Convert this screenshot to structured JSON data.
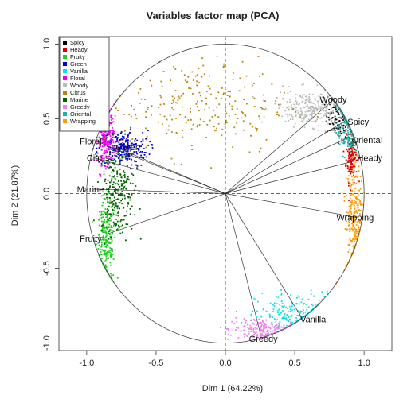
{
  "chart_data": {
    "type": "scatter",
    "title": "Variables factor map (PCA)",
    "xlabel": "Dim 1 (64.22%)",
    "ylabel": "Dim 2 (21.87%)",
    "xlim": [
      -1.2,
      1.2
    ],
    "ylim": [
      -1.05,
      1.05
    ],
    "x_ticks": [
      -1.0,
      -0.5,
      0.0,
      0.5,
      1.0
    ],
    "y_ticks": [
      -1.0,
      -0.5,
      0.0,
      0.5,
      1.0
    ],
    "x_tick_labels": [
      "-1.0",
      "-0.5",
      "0.0",
      "0.5",
      "1.0"
    ],
    "y_tick_labels": [
      "-1.0",
      "-0.5",
      "0.0",
      "0.5",
      "1.0"
    ],
    "grid": false,
    "reference_lines": {
      "x": 0,
      "y": 0,
      "style": "dashed"
    },
    "unit_circle": true,
    "legend_position": "top-left",
    "series": [
      {
        "name": "Spicy",
        "color": "#000000",
        "cluster": {
          "cx": 0.83,
          "cy": 0.52,
          "sx": 0.05,
          "sy": 0.07,
          "n": 140
        }
      },
      {
        "name": "Heady",
        "color": "#dd0000",
        "cluster": {
          "cx": 0.91,
          "cy": 0.26,
          "sx": 0.02,
          "sy": 0.09,
          "n": 150
        }
      },
      {
        "name": "Fruity",
        "color": "#22cc22",
        "cluster": {
          "cx": -0.86,
          "cy": -0.33,
          "sx": 0.035,
          "sy": 0.14,
          "n": 260
        }
      },
      {
        "name": "Green",
        "color": "#0000cc",
        "cluster": {
          "cx": -0.74,
          "cy": 0.3,
          "sx": 0.09,
          "sy": 0.06,
          "n": 240
        }
      },
      {
        "name": "Vanilla",
        "color": "#00e5ee",
        "cluster": {
          "cx": 0.5,
          "cy": -0.82,
          "sx": 0.14,
          "sy": 0.08,
          "n": 220
        }
      },
      {
        "name": "Floral",
        "color": "#ee00ee",
        "cluster": {
          "cx": -0.86,
          "cy": 0.38,
          "sx": 0.03,
          "sy": 0.09,
          "n": 230
        }
      },
      {
        "name": "Woody",
        "color": "#bbbbbb",
        "cluster": {
          "cx": 0.62,
          "cy": 0.57,
          "sx": 0.14,
          "sy": 0.06,
          "n": 280
        }
      },
      {
        "name": "Citrus",
        "color": "#b8860b",
        "cluster": {
          "cx": -0.2,
          "cy": 0.58,
          "sx": 0.33,
          "sy": 0.16,
          "n": 260
        }
      },
      {
        "name": "Marine",
        "color": "#006400",
        "cluster": {
          "cx": -0.78,
          "cy": 0.02,
          "sx": 0.06,
          "sy": 0.15,
          "n": 260
        }
      },
      {
        "name": "Greedy",
        "color": "#ee82ee",
        "cluster": {
          "cx": 0.26,
          "cy": -0.91,
          "sx": 0.12,
          "sy": 0.04,
          "n": 200
        }
      },
      {
        "name": "Oriental",
        "color": "#20b2aa",
        "cluster": {
          "cx": 0.88,
          "cy": 0.42,
          "sx": 0.04,
          "sy": 0.08,
          "n": 140
        }
      },
      {
        "name": "Wrapping",
        "color": "#ff9900",
        "cluster": {
          "cx": 0.93,
          "cy": -0.15,
          "sx": 0.03,
          "sy": 0.18,
          "n": 260
        }
      }
    ],
    "variable_arrows": [
      {
        "name": "Woody",
        "x": 0.77,
        "y": 0.62
      },
      {
        "name": "Spicy",
        "x": 0.87,
        "y": 0.49
      },
      {
        "name": "Oriental",
        "x": 0.9,
        "y": 0.38
      },
      {
        "name": "Heady",
        "x": 0.94,
        "y": 0.22
      },
      {
        "name": "Wrapping",
        "x": 0.95,
        "y": -0.16
      },
      {
        "name": "Vanilla",
        "x": 0.55,
        "y": -0.83
      },
      {
        "name": "Greedy",
        "x": 0.25,
        "y": -0.93
      },
      {
        "name": "Fruity",
        "x": -0.85,
        "y": -0.27
      },
      {
        "name": "Marine",
        "x": -0.95,
        "y": 0.03
      },
      {
        "name": "Citrus",
        "x": -0.95,
        "y": 0.24
      },
      {
        "name": "Floral",
        "x": -0.93,
        "y": 0.35
      },
      {
        "name": "Green",
        "x": -0.79,
        "y": 0.31
      }
    ],
    "arrow_labels": [
      {
        "text": "Woody",
        "x": 0.68,
        "y": 0.63
      },
      {
        "text": "Spicy",
        "x": 0.88,
        "y": 0.48
      },
      {
        "text": "Oriental",
        "x": 0.91,
        "y": 0.36
      },
      {
        "text": "Heady",
        "x": 0.95,
        "y": 0.24
      },
      {
        "text": "Wrapping",
        "x": 0.8,
        "y": -0.16
      },
      {
        "text": "Vanilla",
        "x": 0.54,
        "y": -0.84
      },
      {
        "text": "Greedy",
        "x": 0.17,
        "y": -0.97
      },
      {
        "text": "Fruity",
        "x": -1.05,
        "y": -0.3
      },
      {
        "text": "Marine",
        "x": -1.07,
        "y": 0.03
      },
      {
        "text": "Citrus",
        "x": -1.0,
        "y": 0.24
      },
      {
        "text": "Floral",
        "x": -1.05,
        "y": 0.35
      },
      {
        "text": "Green",
        "x": -0.79,
        "y": 0.31
      }
    ]
  }
}
